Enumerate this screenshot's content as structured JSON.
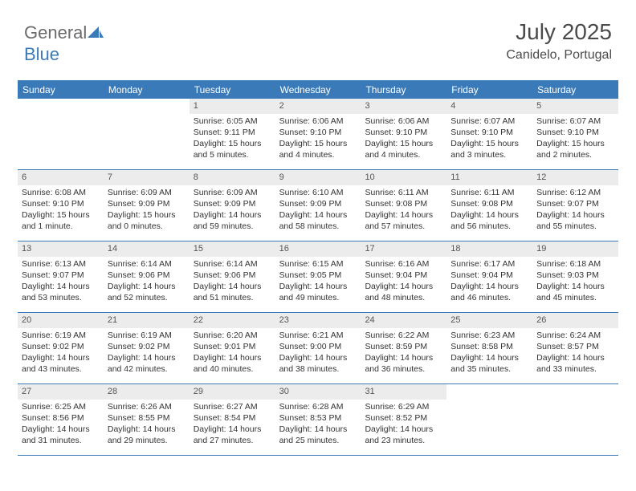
{
  "logo": {
    "text1": "General",
    "text2": "Blue"
  },
  "header": {
    "month": "July 2025",
    "location": "Canidelo, Portugal"
  },
  "dayNames": [
    "Sunday",
    "Monday",
    "Tuesday",
    "Wednesday",
    "Thursday",
    "Friday",
    "Saturday"
  ],
  "colors": {
    "accent": "#3a7ab8",
    "headerText": "#ffffff",
    "numBg": "#ececec",
    "text": "#333333",
    "logoGray": "#6b6b6b"
  },
  "weeks": [
    [
      {
        "n": "",
        "sr": "",
        "ss": "",
        "dl": ""
      },
      {
        "n": "",
        "sr": "",
        "ss": "",
        "dl": ""
      },
      {
        "n": "1",
        "sr": "Sunrise: 6:05 AM",
        "ss": "Sunset: 9:11 PM",
        "dl": "Daylight: 15 hours and 5 minutes."
      },
      {
        "n": "2",
        "sr": "Sunrise: 6:06 AM",
        "ss": "Sunset: 9:10 PM",
        "dl": "Daylight: 15 hours and 4 minutes."
      },
      {
        "n": "3",
        "sr": "Sunrise: 6:06 AM",
        "ss": "Sunset: 9:10 PM",
        "dl": "Daylight: 15 hours and 4 minutes."
      },
      {
        "n": "4",
        "sr": "Sunrise: 6:07 AM",
        "ss": "Sunset: 9:10 PM",
        "dl": "Daylight: 15 hours and 3 minutes."
      },
      {
        "n": "5",
        "sr": "Sunrise: 6:07 AM",
        "ss": "Sunset: 9:10 PM",
        "dl": "Daylight: 15 hours and 2 minutes."
      }
    ],
    [
      {
        "n": "6",
        "sr": "Sunrise: 6:08 AM",
        "ss": "Sunset: 9:10 PM",
        "dl": "Daylight: 15 hours and 1 minute."
      },
      {
        "n": "7",
        "sr": "Sunrise: 6:09 AM",
        "ss": "Sunset: 9:09 PM",
        "dl": "Daylight: 15 hours and 0 minutes."
      },
      {
        "n": "8",
        "sr": "Sunrise: 6:09 AM",
        "ss": "Sunset: 9:09 PM",
        "dl": "Daylight: 14 hours and 59 minutes."
      },
      {
        "n": "9",
        "sr": "Sunrise: 6:10 AM",
        "ss": "Sunset: 9:09 PM",
        "dl": "Daylight: 14 hours and 58 minutes."
      },
      {
        "n": "10",
        "sr": "Sunrise: 6:11 AM",
        "ss": "Sunset: 9:08 PM",
        "dl": "Daylight: 14 hours and 57 minutes."
      },
      {
        "n": "11",
        "sr": "Sunrise: 6:11 AM",
        "ss": "Sunset: 9:08 PM",
        "dl": "Daylight: 14 hours and 56 minutes."
      },
      {
        "n": "12",
        "sr": "Sunrise: 6:12 AM",
        "ss": "Sunset: 9:07 PM",
        "dl": "Daylight: 14 hours and 55 minutes."
      }
    ],
    [
      {
        "n": "13",
        "sr": "Sunrise: 6:13 AM",
        "ss": "Sunset: 9:07 PM",
        "dl": "Daylight: 14 hours and 53 minutes."
      },
      {
        "n": "14",
        "sr": "Sunrise: 6:14 AM",
        "ss": "Sunset: 9:06 PM",
        "dl": "Daylight: 14 hours and 52 minutes."
      },
      {
        "n": "15",
        "sr": "Sunrise: 6:14 AM",
        "ss": "Sunset: 9:06 PM",
        "dl": "Daylight: 14 hours and 51 minutes."
      },
      {
        "n": "16",
        "sr": "Sunrise: 6:15 AM",
        "ss": "Sunset: 9:05 PM",
        "dl": "Daylight: 14 hours and 49 minutes."
      },
      {
        "n": "17",
        "sr": "Sunrise: 6:16 AM",
        "ss": "Sunset: 9:04 PM",
        "dl": "Daylight: 14 hours and 48 minutes."
      },
      {
        "n": "18",
        "sr": "Sunrise: 6:17 AM",
        "ss": "Sunset: 9:04 PM",
        "dl": "Daylight: 14 hours and 46 minutes."
      },
      {
        "n": "19",
        "sr": "Sunrise: 6:18 AM",
        "ss": "Sunset: 9:03 PM",
        "dl": "Daylight: 14 hours and 45 minutes."
      }
    ],
    [
      {
        "n": "20",
        "sr": "Sunrise: 6:19 AM",
        "ss": "Sunset: 9:02 PM",
        "dl": "Daylight: 14 hours and 43 minutes."
      },
      {
        "n": "21",
        "sr": "Sunrise: 6:19 AM",
        "ss": "Sunset: 9:02 PM",
        "dl": "Daylight: 14 hours and 42 minutes."
      },
      {
        "n": "22",
        "sr": "Sunrise: 6:20 AM",
        "ss": "Sunset: 9:01 PM",
        "dl": "Daylight: 14 hours and 40 minutes."
      },
      {
        "n": "23",
        "sr": "Sunrise: 6:21 AM",
        "ss": "Sunset: 9:00 PM",
        "dl": "Daylight: 14 hours and 38 minutes."
      },
      {
        "n": "24",
        "sr": "Sunrise: 6:22 AM",
        "ss": "Sunset: 8:59 PM",
        "dl": "Daylight: 14 hours and 36 minutes."
      },
      {
        "n": "25",
        "sr": "Sunrise: 6:23 AM",
        "ss": "Sunset: 8:58 PM",
        "dl": "Daylight: 14 hours and 35 minutes."
      },
      {
        "n": "26",
        "sr": "Sunrise: 6:24 AM",
        "ss": "Sunset: 8:57 PM",
        "dl": "Daylight: 14 hours and 33 minutes."
      }
    ],
    [
      {
        "n": "27",
        "sr": "Sunrise: 6:25 AM",
        "ss": "Sunset: 8:56 PM",
        "dl": "Daylight: 14 hours and 31 minutes."
      },
      {
        "n": "28",
        "sr": "Sunrise: 6:26 AM",
        "ss": "Sunset: 8:55 PM",
        "dl": "Daylight: 14 hours and 29 minutes."
      },
      {
        "n": "29",
        "sr": "Sunrise: 6:27 AM",
        "ss": "Sunset: 8:54 PM",
        "dl": "Daylight: 14 hours and 27 minutes."
      },
      {
        "n": "30",
        "sr": "Sunrise: 6:28 AM",
        "ss": "Sunset: 8:53 PM",
        "dl": "Daylight: 14 hours and 25 minutes."
      },
      {
        "n": "31",
        "sr": "Sunrise: 6:29 AM",
        "ss": "Sunset: 8:52 PM",
        "dl": "Daylight: 14 hours and 23 minutes."
      },
      {
        "n": "",
        "sr": "",
        "ss": "",
        "dl": ""
      },
      {
        "n": "",
        "sr": "",
        "ss": "",
        "dl": ""
      }
    ]
  ]
}
